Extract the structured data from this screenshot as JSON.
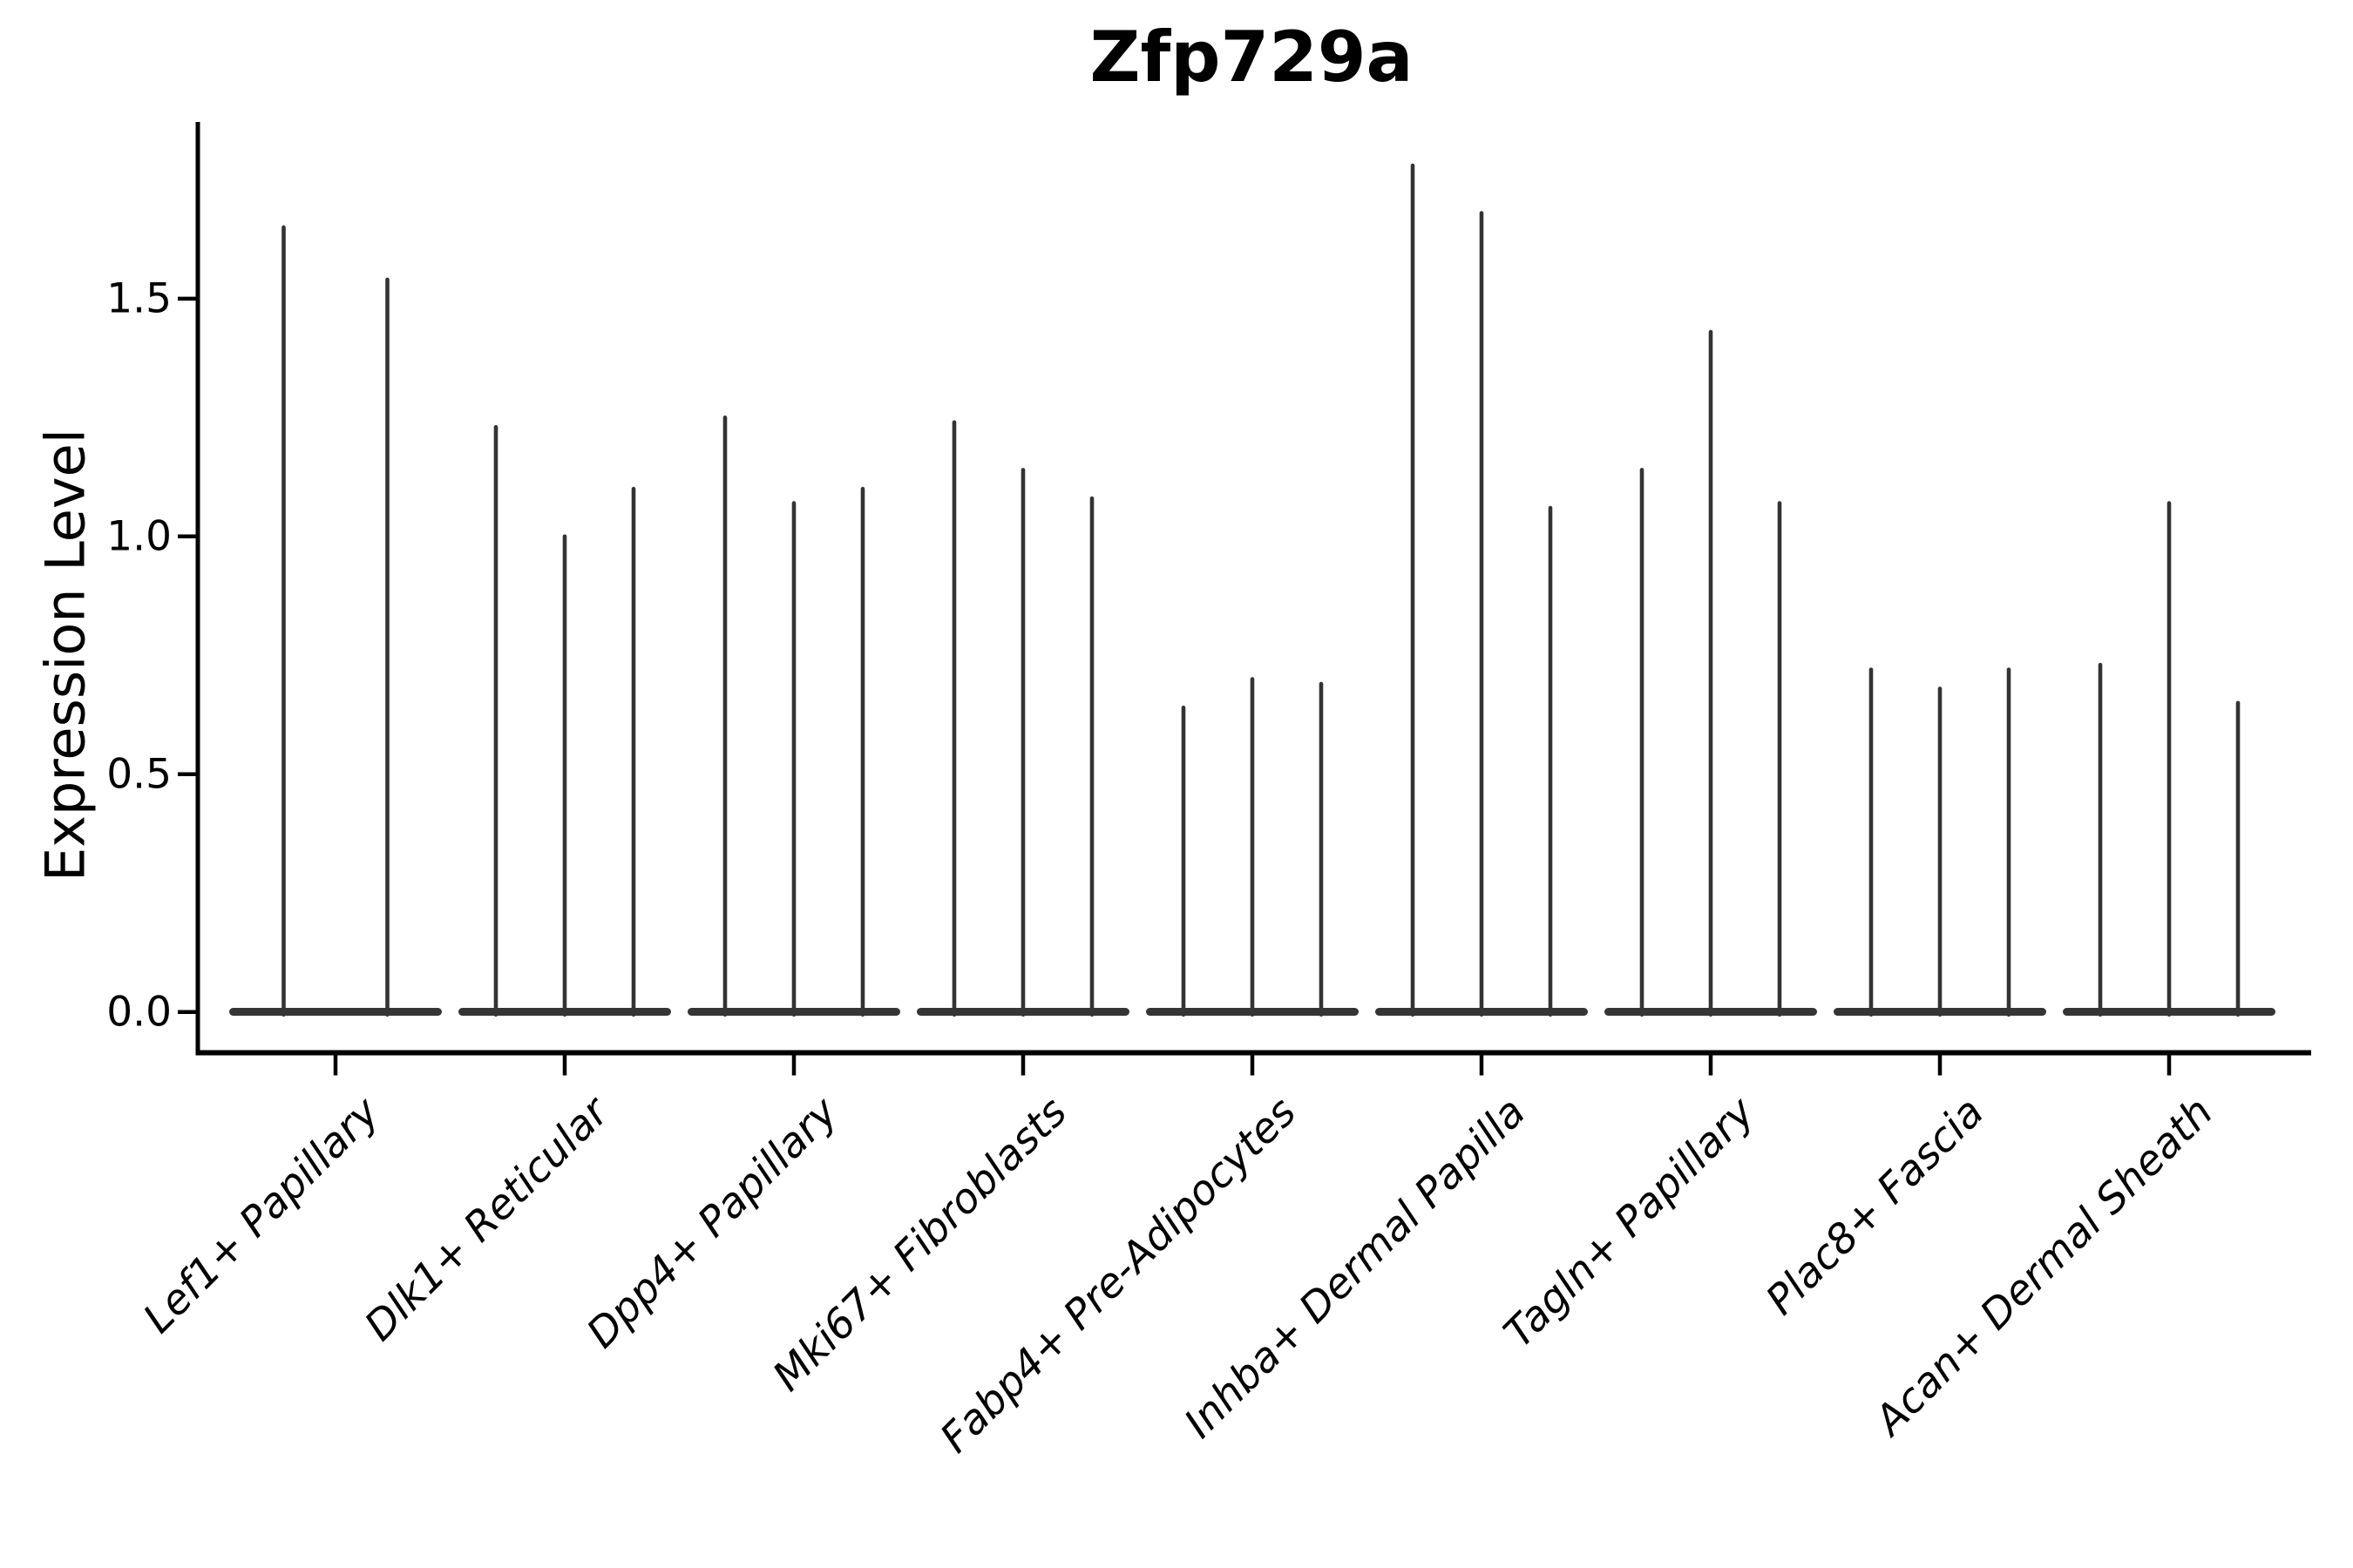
{
  "chart_data": {
    "type": "violin",
    "title": "Zfp729a",
    "ylabel": "Expression Level",
    "xlabel": "",
    "grid": false,
    "legend_position": "none",
    "ylim": [
      -0.09,
      1.87
    ],
    "yticks": [
      0.0,
      0.5,
      1.0,
      1.5
    ],
    "ytick_labels": [
      "0.0",
      "0.5",
      "1.0",
      "1.5"
    ],
    "categories": [
      "Lef1+ Papillary",
      "Dlk1+ Reticular",
      "Dpp4+ Papillary",
      "Mki67+ Fibroblasts",
      "Fabp4+ Pre-Adipocytes",
      "Inhba+ Dermal Papilla",
      "Tagln+ Papillary",
      "Plac8+ Fascia",
      "Acan+ Dermal Sheath"
    ],
    "groups": [
      {
        "category": "Lef1+ Papillary",
        "needle_peaks": [
          1.65,
          1.54
        ]
      },
      {
        "category": "Dlk1+ Reticular",
        "needle_peaks": [
          1.23,
          1.0,
          1.1
        ]
      },
      {
        "category": "Dpp4+ Papillary",
        "needle_peaks": [
          1.25,
          1.07,
          1.1
        ]
      },
      {
        "category": "Mki67+ Fibroblasts",
        "needle_peaks": [
          1.24,
          1.14,
          1.08
        ]
      },
      {
        "category": "Fabp4+ Pre-Adipocytes",
        "needle_peaks": [
          0.64,
          0.7,
          0.69
        ]
      },
      {
        "category": "Inhba+ Dermal Papilla",
        "needle_peaks": [
          1.78,
          1.68,
          1.06
        ]
      },
      {
        "category": "Tagln+ Papillary",
        "needle_peaks": [
          1.14,
          1.43,
          1.07
        ]
      },
      {
        "category": "Plac8+ Fascia",
        "needle_peaks": [
          0.72,
          0.68,
          0.72
        ]
      },
      {
        "category": "Acan+ Dermal Sheath",
        "needle_peaks": [
          0.73,
          1.07,
          0.65
        ]
      }
    ],
    "baseline_value": 0.0,
    "violin_style": "thin needle violins with wide flat density mass at 0"
  },
  "colors": {
    "background": "#ffffff",
    "axis": "#000000",
    "text": "#000000",
    "needle": "#333333",
    "base_blob": "#353535"
  }
}
